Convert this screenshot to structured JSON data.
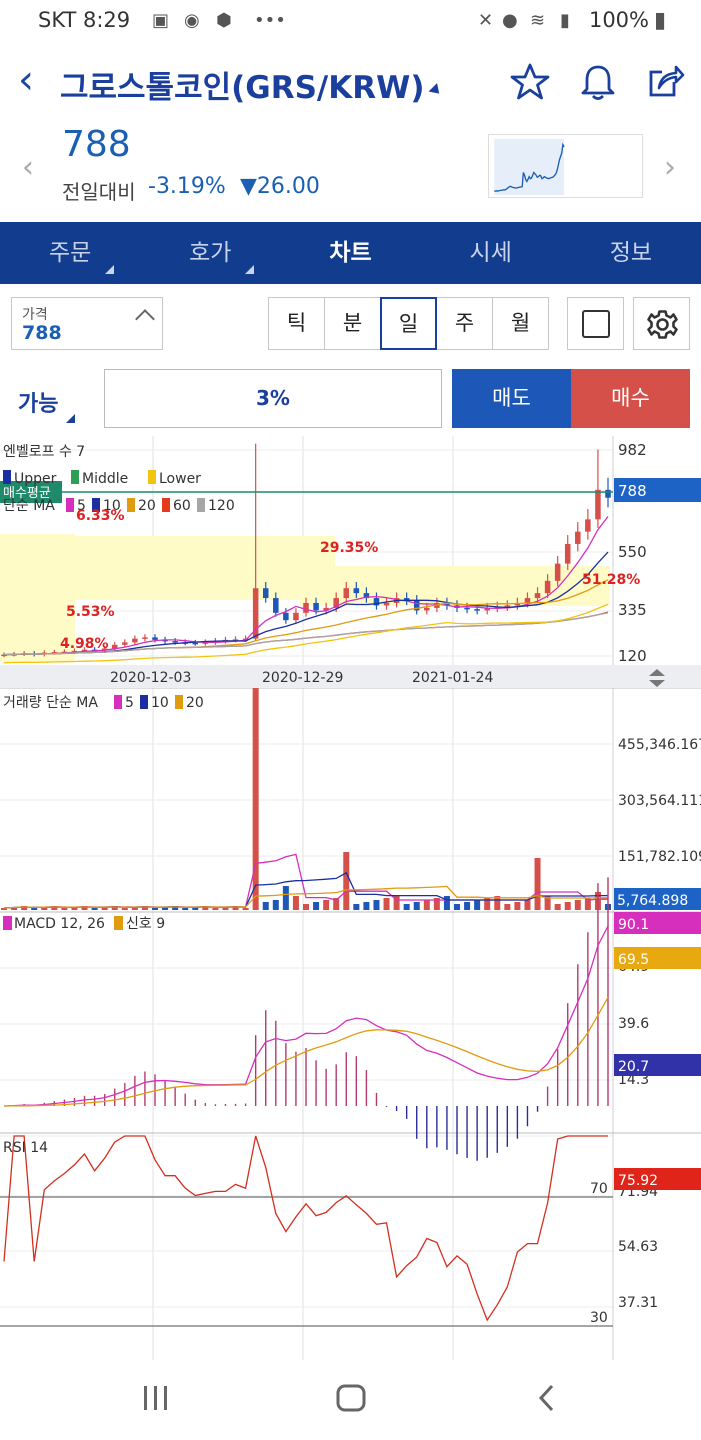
{
  "status_bar": {
    "carrier": "SKT",
    "time": "8:29",
    "battery": "100%"
  },
  "header": {
    "title": "그로스톨코인(GRS/KRW)",
    "icons": [
      "back-arrow-icon",
      "star-icon",
      "bell-icon",
      "share-icon"
    ]
  },
  "quote": {
    "price": "788",
    "compare_label": "전일대비",
    "change_pct": "-3.19%",
    "change_amount": "26.00",
    "change_color": "#1a5fb4"
  },
  "tabs": {
    "items": [
      {
        "label": "주문"
      },
      {
        "label": "호가"
      },
      {
        "label": "차트"
      },
      {
        "label": "시세"
      },
      {
        "label": "정보"
      }
    ],
    "active": "차트"
  },
  "controls": {
    "price_label": "가격",
    "price_value": "788",
    "periods": [
      "틱",
      "분",
      "일",
      "주",
      "월"
    ],
    "active_period": "일"
  },
  "order": {
    "avail_label": "가능",
    "percent": "3%",
    "sell_label": "매도",
    "buy_label": "매수"
  },
  "chart_data": [
    {
      "type": "candlestick",
      "title": "",
      "indicator_labels": {
        "bollinger_prefix": "엔벨로프 수 7",
        "legend": [
          "Upper",
          "Middle",
          "Lower"
        ],
        "ma_prefix": "단순 MA",
        "ma_periods": [
          "5",
          "10",
          "20",
          "60",
          "120"
        ],
        "avg_buy_label": "매수평균"
      },
      "x_tick_labels": [
        "2020-12-03",
        "2020-12-29",
        "2021-01-24"
      ],
      "y_tick_labels": [
        "982",
        "550",
        "335",
        "120"
      ],
      "ylim": [
        120,
        982
      ],
      "current_price": "788",
      "annotations": [
        "29.35%",
        "5.53%",
        "6.33%",
        "4.98%",
        "51.28%"
      ],
      "close_series": [
        150,
        152,
        155,
        150,
        158,
        160,
        162,
        165,
        170,
        168,
        175,
        190,
        200,
        215,
        220,
        210,
        205,
        200,
        198,
        196,
        200,
        205,
        210,
        212,
        215,
        420,
        380,
        320,
        290,
        320,
        360,
        330,
        340,
        380,
        420,
        400,
        380,
        350,
        360,
        380,
        370,
        330,
        340,
        360,
        350,
        340,
        335,
        330,
        340,
        345,
        350,
        360,
        380,
        400,
        450,
        520,
        600,
        650,
        700,
        820,
        788
      ]
    },
    {
      "type": "bar",
      "title": "",
      "prefix": "거래량 단순 MA",
      "ma_periods": [
        "5",
        "10",
        "20"
      ],
      "y_tick_labels": [
        "455,346.167",
        "303,564.111",
        "151,782.109"
      ],
      "current_value": "5,764.898"
    },
    {
      "type": "line",
      "title": "",
      "prefix": "MACD 12, 26",
      "signal_label": "신호 9",
      "y_tick_labels": [
        "64.9",
        "39.6",
        "14.3"
      ],
      "current_macd": "90.1",
      "current_signal": "69.5",
      "current_hist": "20.7"
    },
    {
      "type": "line",
      "title": "",
      "prefix": "RSI 14",
      "y_tick_labels": [
        "71.94",
        "54.63",
        "37.31"
      ],
      "levels": [
        "70",
        "30"
      ],
      "current_value": "75.92"
    }
  ],
  "colors": {
    "brand_blue": "#123d8f",
    "rise_red": "#d6504a",
    "fall_blue": "#1d58b8",
    "ma5": "#d62fbd",
    "ma10": "#1b2fa0",
    "ma20": "#e09b0f",
    "ma60": "#e23a1b",
    "ma120": "#a6a6a6"
  }
}
